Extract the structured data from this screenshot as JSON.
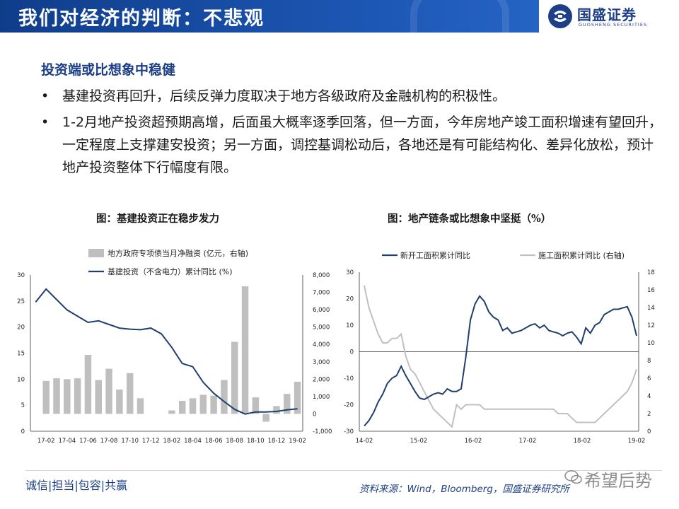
{
  "header": {
    "title": "我们对经济的判断：不悲观",
    "logo_name": "国盛证券",
    "logo_sub": "GUOSHENG SECURITIES"
  },
  "section_title": "投资端或比想象中稳健",
  "bullets": [
    {
      "marker": "•",
      "text": "基建投资再回升，后续反弹力度取决于地方各级政府及金融机构的积极性。"
    },
    {
      "marker": "•",
      "text": "1-2月地产投资超预期高增，后面虽大概率逐季回落，但一方面，今年房地产竣工面积增速有望回升，一定程度上支撑建安投资；另一方面，调控基调松动后，各地还是有可能结构化、差异化放松，预计地产投资整体下行幅度有限。"
    }
  ],
  "colors": {
    "accent": "#1c3f87",
    "line_dark": "#1f3f6e",
    "line_light": "#c0c0c0",
    "bar": "#bfbfbf"
  },
  "chart_data": [
    {
      "type": "bar+line",
      "title": "图：基建投资正在稳步发力",
      "x_ticks": [
        "17-02",
        "17-04",
        "17-06",
        "17-08",
        "17-10",
        "17-12",
        "18-02",
        "18-04",
        "18-06",
        "18-08",
        "18-10",
        "18-12",
        "19-02"
      ],
      "y_left": {
        "ylim": [
          0,
          30
        ],
        "ticks": [
          "0",
          "5",
          "10",
          "15",
          "20",
          "25",
          "30"
        ]
      },
      "y_right": {
        "ylim": [
          -1000,
          8000
        ],
        "ticks": [
          "-1,000",
          "0",
          "1,000",
          "2,000",
          "3,000",
          "4,000",
          "5,000",
          "6,000",
          "7,000",
          "8,000"
        ]
      },
      "series": [
        {
          "name": "地方政府专项债当月净融资 (亿元，右轴)",
          "type": "bar",
          "axis": "right",
          "x": [
            "17-01",
            "17-02",
            "17-03",
            "17-04",
            "17-05",
            "17-06",
            "17-07",
            "17-08",
            "17-09",
            "17-10",
            "17-11",
            "17-12",
            "18-01",
            "18-02",
            "18-03",
            "18-04",
            "18-05",
            "18-06",
            "18-07",
            "18-08",
            "18-09",
            "18-10",
            "18-11",
            "18-12",
            "19-01",
            "19-02"
          ],
          "values": [
            null,
            1900,
            2050,
            2000,
            2050,
            3400,
            1950,
            2600,
            1400,
            2350,
            900,
            null,
            null,
            200,
            750,
            900,
            1100,
            1050,
            1950,
            4150,
            7350,
            950,
            -450,
            450,
            1150,
            1850
          ]
        },
        {
          "name": "基建投资（不含电力）累计同比 (%)",
          "type": "line",
          "axis": "left",
          "x": [
            "17-01",
            "17-02",
            "17-03",
            "17-04",
            "17-05",
            "17-06",
            "17-07",
            "17-08",
            "17-09",
            "17-10",
            "17-11",
            "17-12",
            "18-01",
            "18-02",
            "18-03",
            "18-04",
            "18-05",
            "18-06",
            "18-07",
            "18-08",
            "18-09",
            "18-10",
            "18-11",
            "18-12",
            "19-01",
            "19-02"
          ],
          "values": [
            24.8,
            27.3,
            null,
            23.3,
            null,
            20.9,
            21.2,
            null,
            19.8,
            19.6,
            19.5,
            19.8,
            18.7,
            16.1,
            13.0,
            12.4,
            9.4,
            7.3,
            5.7,
            4.2,
            3.3,
            3.7,
            3.7,
            3.8,
            4.1,
            4.3
          ]
        }
      ]
    },
    {
      "type": "line",
      "title": "图：地产链条或比想象中坚挺（%）",
      "x_ticks": [
        "14-02",
        "15-02",
        "16-02",
        "17-02",
        "18-02",
        "19-02"
      ],
      "y_left": {
        "ylim": [
          -30,
          30
        ],
        "ticks": [
          "-30",
          "-20",
          "-10",
          "0",
          "10",
          "20",
          "30"
        ]
      },
      "y_right": {
        "ylim": [
          0,
          18
        ],
        "ticks": [
          "0",
          "2",
          "4",
          "6",
          "8",
          "10",
          "12",
          "14",
          "16",
          "18"
        ]
      },
      "series": [
        {
          "name": "新开工面积累计同比",
          "axis": "left",
          "values": [
            -28,
            -26,
            -23,
            -19,
            -16,
            -12,
            -10,
            -9,
            -5.5,
            -9,
            -12,
            -15,
            -17.5,
            -18,
            -17,
            -16,
            -15.5,
            -16,
            -14,
            -15,
            -15,
            -14,
            -2,
            12,
            18,
            21,
            19,
            15,
            13,
            12,
            8,
            9,
            7,
            7.5,
            8,
            9,
            10,
            10.5,
            9,
            10,
            8,
            7.5,
            7,
            6,
            7,
            7.5,
            5.5,
            3,
            9,
            7,
            10,
            11,
            14,
            15,
            16,
            16,
            16.5,
            17,
            13,
            6
          ]
        },
        {
          "name": "施工面积累计同比 (右轴)",
          "axis": "right",
          "values": [
            16.5,
            14,
            12.5,
            11,
            10,
            10,
            10.5,
            10.5,
            11,
            8.5,
            7,
            6.5,
            5.5,
            4.5,
            3.5,
            2.5,
            2,
            1.5,
            1,
            0.5,
            3,
            2.5,
            3,
            3,
            3,
            3,
            2.5,
            2.5,
            2.5,
            2.5,
            2.5,
            2.5,
            2.5,
            2.5,
            2.5,
            2.5,
            2.5,
            2.5,
            2.5,
            2.5,
            2.5,
            2.5,
            2,
            2,
            2,
            1.5,
            1,
            1,
            1,
            1,
            1,
            1.5,
            2,
            2.5,
            3,
            3.5,
            4,
            4.5,
            5.5,
            7
          ]
        }
      ]
    }
  ],
  "footer": {
    "motto": "诚信|担当|包容|共赢",
    "source": "资料来源：Wind，Bloomberg，国盛证券研究所",
    "watermark": "希望后势"
  }
}
